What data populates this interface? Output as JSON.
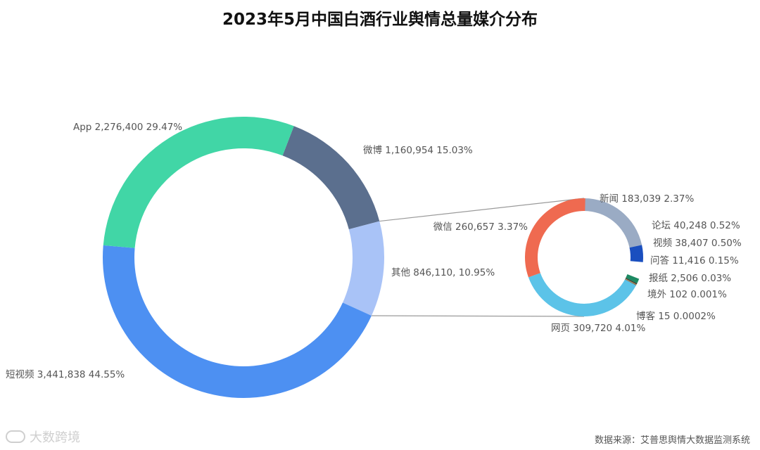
{
  "chart_data": {
    "type": "pie",
    "title": "2023年5月中国白酒行业舆情总量媒介分布",
    "main": {
      "slices": [
        {
          "name": "微博",
          "value": 1160954,
          "percent": "15.03%",
          "label": "微博 1,160,954 15.03%",
          "color": "#5b6f8e"
        },
        {
          "name": "其他",
          "value": 846110,
          "percent": "10.95%",
          "label": "其他 846,110, 10.95%",
          "color": "#a9c3f7"
        },
        {
          "name": "短视频",
          "value": 3441838,
          "percent": "44.55%",
          "label": "短视频 3,441,838 44.55%",
          "color": "#4d90f2"
        },
        {
          "name": "App",
          "value": 2276400,
          "percent": "29.47%",
          "label": "App 2,276,400 29.47%",
          "color": "#41d6a6"
        }
      ]
    },
    "detail": {
      "parent": "其他",
      "slices": [
        {
          "name": "新闻",
          "value": 183039,
          "percent": "2.37%",
          "label": "新闻 183,039 2.37%",
          "color": "#9aabc4"
        },
        {
          "name": "论坛",
          "value": 40248,
          "percent": "0.52%",
          "label": "论坛 40,248 0.52%",
          "color": "#1a4fbf"
        },
        {
          "name": "视频",
          "value": 38407,
          "percent": "0.50%",
          "label": "视频 38,407 0.50%",
          "color": "#ffffff"
        },
        {
          "name": "问答",
          "value": 11416,
          "percent": "0.15%",
          "label": "问答 11,416 0.15%",
          "color": "#1d8a62"
        },
        {
          "name": "报纸",
          "value": 2506,
          "percent": "0.03%",
          "label": "报纸 2,506 0.03%",
          "color": "#333333"
        },
        {
          "name": "境外",
          "value": 102,
          "percent": "0.001%",
          "label": "境外 102 0.001%",
          "color": "#c8a24a"
        },
        {
          "name": "博客",
          "value": 15,
          "percent": "0.0002%",
          "label": "博客 15 0.0002%",
          "color": "#555555"
        },
        {
          "name": "网页",
          "value": 309720,
          "percent": "4.01%",
          "label": "网页 309,720 4.01%",
          "color": "#5cc3e8"
        },
        {
          "name": "微信",
          "value": 260657,
          "percent": "3.37%",
          "label": "微信 260,657 3.37%",
          "color": "#ef6a50"
        }
      ]
    }
  },
  "footer": {
    "source": "数据来源：艾普思舆情大数据监测系统",
    "brand": "大数跨境"
  }
}
